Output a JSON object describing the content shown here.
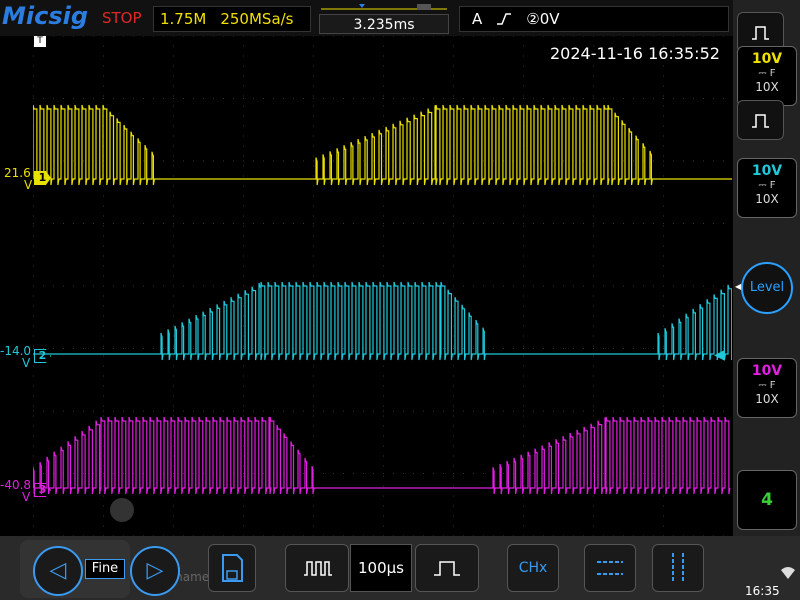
{
  "header": {
    "brand": "Micsig",
    "run_state": "STOP",
    "memory_depth": "1.75M",
    "sample_rate": "250MSa/s",
    "time_offset": "3.235ms",
    "trigger_mode": "A",
    "trigger_source": "②0V"
  },
  "timestamp": "2024-11-16 16:35:52",
  "channels": [
    {
      "id": "1",
      "offset_label": "21.6",
      "unit": "V",
      "color": "#e8e000",
      "volts_div": "10V",
      "coupling": "F",
      "probe": "10X"
    },
    {
      "id": "2",
      "offset_label": "-14.0",
      "unit": "V",
      "color": "#20c8d8",
      "volts_div": "10V",
      "coupling": "F",
      "probe": "10X"
    },
    {
      "id": "3",
      "offset_label": "-40.8",
      "unit": "V",
      "color": "#e020e0",
      "volts_div": "10V",
      "coupling": "F",
      "probe": "10X"
    }
  ],
  "right_panel": {
    "level_label": "Level",
    "menu_number": "4"
  },
  "bottom_bar": {
    "fine_label": "Fine",
    "timebase": "100μs",
    "chx_label": "CHx",
    "ghost_text": "Rename",
    "clock": "16:35"
  }
}
